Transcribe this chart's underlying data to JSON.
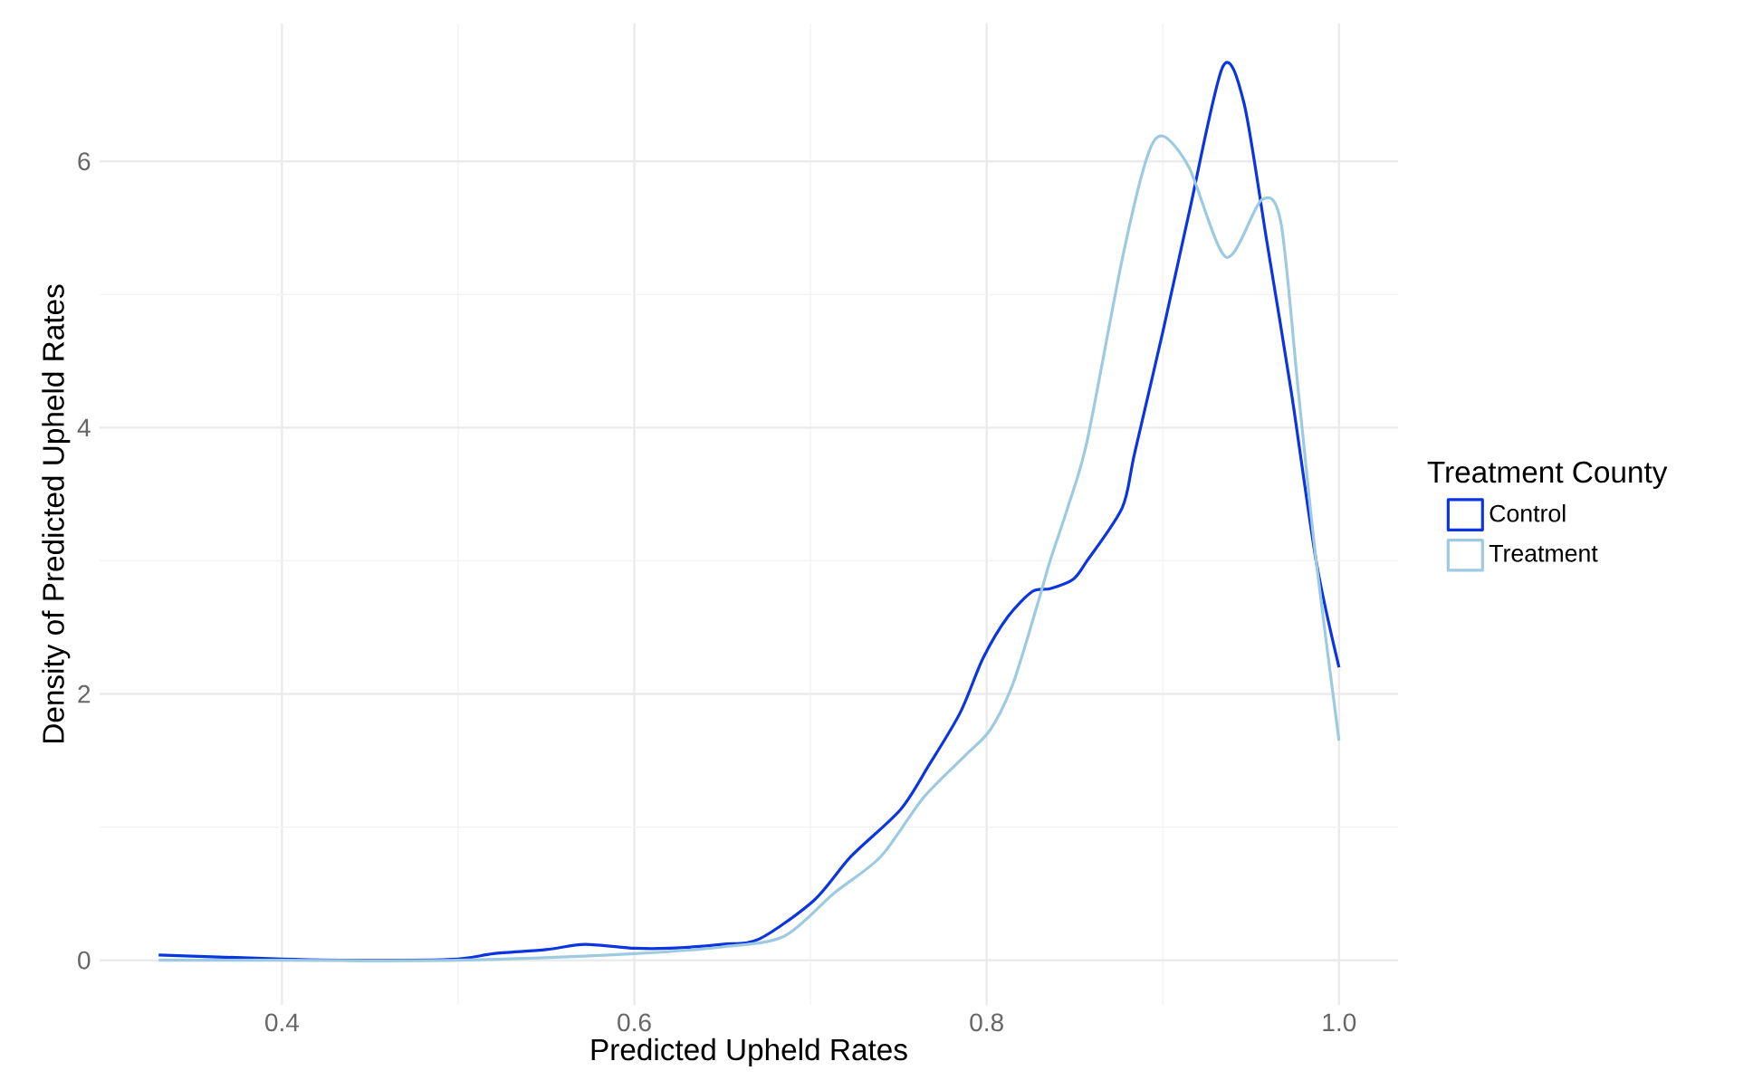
{
  "chart_data": {
    "type": "line",
    "xlabel": "Predicted Upheld Rates",
    "ylabel": "Density of Predicted Upheld Rates",
    "legend_title": "Treatment County",
    "legend": "right",
    "grid": true,
    "xlim": [
      0.2965,
      1.0335
    ],
    "ylim": [
      -0.335,
      7.035
    ],
    "xticks": [
      0.4,
      0.6,
      0.8,
      {
        "value": 1,
        "label": "1.0"
      }
    ],
    "yticks": [
      0,
      2,
      4,
      6
    ],
    "series": [
      {
        "name": "Control",
        "color": "#0a35e0",
        "x": [
          0.33,
          0.4,
          0.45,
          0.5,
          0.52,
          0.55,
          0.572,
          0.6,
          0.62,
          0.65,
          0.671,
          0.702,
          0.723,
          0.751,
          0.767,
          0.785,
          0.798,
          0.812,
          0.826,
          0.836,
          0.849,
          0.857,
          0.877,
          0.884,
          0.9,
          0.915,
          0.934,
          0.946,
          0.959,
          0.973,
          0.987,
          1.0
        ],
        "values": [
          0.04,
          0.01,
          0.0,
          0.01,
          0.05,
          0.08,
          0.12,
          0.09,
          0.09,
          0.12,
          0.16,
          0.45,
          0.78,
          1.13,
          1.46,
          1.86,
          2.27,
          2.58,
          2.77,
          2.79,
          2.86,
          3.0,
          3.4,
          3.81,
          4.72,
          5.62,
          6.71,
          6.44,
          5.4,
          4.26,
          3.0,
          2.2
        ]
      },
      {
        "name": "Treatment",
        "color": "#9ecae1",
        "x": [
          0.33,
          0.4,
          0.5,
          0.6,
          0.65,
          0.685,
          0.713,
          0.74,
          0.764,
          0.788,
          0.802,
          0.815,
          0.829,
          0.836,
          0.846,
          0.857,
          0.877,
          0.891,
          0.9,
          0.915,
          0.936,
          0.956,
          0.967,
          0.977,
          0.987,
          1.0
        ],
        "values": [
          0.0,
          0.0,
          0.0,
          0.05,
          0.1,
          0.18,
          0.5,
          0.78,
          1.22,
          1.54,
          1.73,
          2.08,
          2.68,
          3.0,
          3.4,
          3.9,
          5.27,
          6.03,
          6.19,
          5.95,
          5.28,
          5.71,
          5.54,
          4.26,
          3.0,
          1.65
        ]
      }
    ]
  }
}
